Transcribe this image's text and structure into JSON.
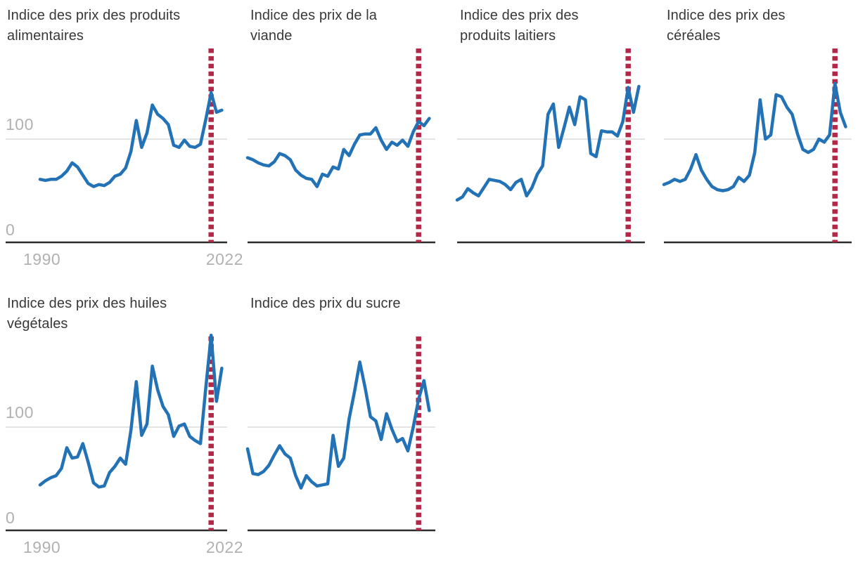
{
  "colors": {
    "series_line": "#2272b5",
    "event_vline": "#b42847",
    "gridline": "#e4e4e4",
    "axis": "#2b2b2b",
    "tick_label": "#b1b1b1",
    "title_text": "#383838",
    "background": "#ffffff"
  },
  "chart_data": [
    {
      "type": "line",
      "title": "Indice des prix des produits alimentaires",
      "title_lines": [
        "Indice des prix des produits",
        "alimentaires"
      ],
      "x_start": 1990,
      "x_end": 2024,
      "x_step": 1,
      "values": [
        61,
        60,
        61,
        61,
        64,
        69,
        77,
        73,
        65,
        57,
        54,
        56,
        55,
        58,
        64,
        66,
        72,
        88,
        118,
        92,
        106,
        133,
        124,
        120,
        114,
        94,
        92,
        99,
        93,
        92,
        95,
        119,
        145,
        126,
        128
      ],
      "gridline_value": 100,
      "vline_year": 2022,
      "ylim": [
        0,
        190
      ],
      "yticks": [
        "100",
        "0"
      ],
      "xticks": [
        "1990",
        "2022"
      ],
      "show_y_tick_labels": true,
      "show_x_tick_labels": true
    },
    {
      "type": "line",
      "title": "Indice des prix de la viande",
      "title_lines": [
        "Indice des prix de la",
        "viande"
      ],
      "x_start": 1990,
      "x_end": 2024,
      "x_step": 1,
      "values": [
        82,
        80,
        77,
        75,
        74,
        78,
        86,
        84,
        80,
        70,
        65,
        62,
        61,
        54,
        66,
        64,
        73,
        71,
        90,
        84,
        95,
        104,
        105,
        105,
        111,
        99,
        90,
        97,
        94,
        99,
        93,
        107,
        117,
        113,
        120
      ],
      "gridline_value": 100,
      "vline_year": 2022,
      "ylim": [
        0,
        190
      ],
      "yticks": [
        "100",
        "0"
      ],
      "xticks": [
        "1990",
        "2022"
      ],
      "show_y_tick_labels": false,
      "show_x_tick_labels": false
    },
    {
      "type": "line",
      "title": "Indice des prix des produits laitiers",
      "title_lines": [
        "Indice des prix des",
        "produits laitiers"
      ],
      "x_start": 1990,
      "x_end": 2024,
      "x_step": 1,
      "values": [
        41,
        44,
        52,
        48,
        45,
        53,
        61,
        60,
        59,
        56,
        51,
        58,
        61,
        45,
        53,
        66,
        74,
        124,
        134,
        92,
        111,
        131,
        114,
        141,
        138,
        86,
        83,
        108,
        107,
        107,
        103,
        117,
        150,
        126,
        151
      ],
      "gridline_value": 100,
      "vline_year": 2022,
      "ylim": [
        0,
        190
      ],
      "yticks": [
        "100",
        "0"
      ],
      "xticks": [
        "1990",
        "2022"
      ],
      "show_y_tick_labels": false,
      "show_x_tick_labels": false
    },
    {
      "type": "line",
      "title": "Indice des prix des céréales",
      "title_lines": [
        "Indice des prix des",
        "céréales"
      ],
      "x_start": 1990,
      "x_end": 2024,
      "x_step": 1,
      "values": [
        56,
        58,
        61,
        59,
        61,
        71,
        85,
        70,
        61,
        54,
        51,
        50,
        51,
        54,
        63,
        59,
        65,
        87,
        138,
        100,
        104,
        143,
        141,
        131,
        124,
        105,
        90,
        87,
        90,
        100,
        97,
        104,
        154,
        126,
        112
      ],
      "gridline_value": 100,
      "vline_year": 2022,
      "ylim": [
        0,
        190
      ],
      "yticks": [
        "100",
        "0"
      ],
      "xticks": [
        "1990",
        "2022"
      ],
      "show_y_tick_labels": false,
      "show_x_tick_labels": false
    },
    {
      "type": "line",
      "title": "Indice des prix des huiles végétales",
      "title_lines": [
        "Indice des prix des huiles",
        "végétales"
      ],
      "x_start": 1990,
      "x_end": 2024,
      "x_step": 1,
      "values": [
        44,
        48,
        51,
        53,
        60,
        80,
        70,
        71,
        84,
        66,
        46,
        42,
        43,
        56,
        62,
        70,
        64,
        97,
        144,
        92,
        103,
        159,
        136,
        120,
        112,
        91,
        101,
        103,
        91,
        87,
        84,
        138,
        190,
        125,
        157
      ],
      "gridline_value": 100,
      "vline_year": 2022,
      "ylim": [
        0,
        190
      ],
      "yticks": [
        "100",
        "0"
      ],
      "xticks": [
        "1990",
        "2022"
      ],
      "show_y_tick_labels": true,
      "show_x_tick_labels": true
    },
    {
      "type": "line",
      "title": "Indice des prix du sucre",
      "title_lines": [
        "Indice des prix du sucre",
        ""
      ],
      "x_start": 1990,
      "x_end": 2024,
      "x_step": 1,
      "values": [
        79,
        55,
        54,
        57,
        63,
        73,
        82,
        74,
        70,
        53,
        41,
        53,
        47,
        43,
        44,
        45,
        92,
        62,
        70,
        108,
        134,
        163,
        138,
        110,
        106,
        88,
        113,
        98,
        86,
        89,
        77,
        100,
        127,
        145,
        116
      ],
      "gridline_value": 100,
      "vline_year": 2022,
      "ylim": [
        0,
        190
      ],
      "yticks": [
        "100",
        "0"
      ],
      "xticks": [
        "1990",
        "2022"
      ],
      "show_y_tick_labels": false,
      "show_x_tick_labels": false
    }
  ]
}
